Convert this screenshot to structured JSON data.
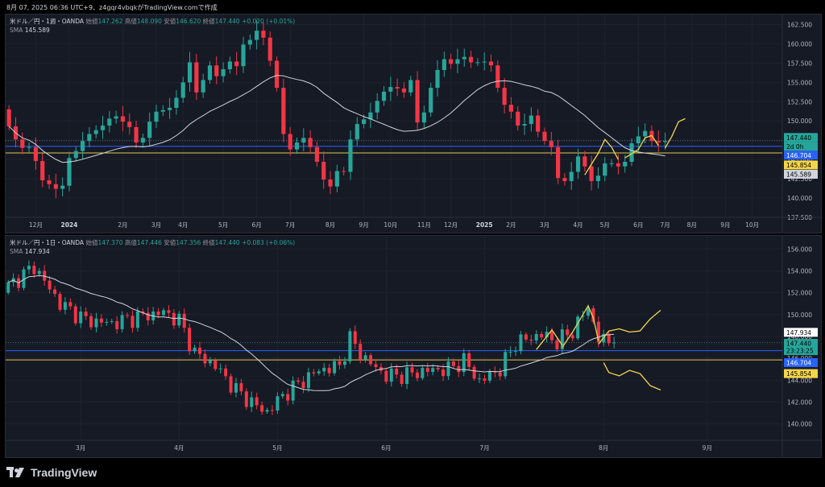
{
  "snapshot_caption": "8月 07, 2025 06:36 UTC+9、z4gqr4vbqkがTradingView.comで作成",
  "brand": "TradingView",
  "colors": {
    "up": "#26a69a",
    "down": "#f23645",
    "sma": "#d1d4dc",
    "trend": "#f5d547",
    "blue_line": "#2962ff",
    "white_line": "#b2b5be",
    "pane_bg": "#161a25",
    "grid": "#1f2330"
  },
  "chart_data": [
    {
      "type": "candlestick",
      "pane": "top",
      "title": "米ドル／円・1週・OANDA",
      "ohlc_legend": {
        "open_label": "始値",
        "open": "147.262",
        "high_label": "高値",
        "high": "148.090",
        "low_label": "安値",
        "low": "146.620",
        "close_label": "終値",
        "close": "147.440",
        "change": "+0.020 (+0.01%)"
      },
      "sma_label": "SMA",
      "sma_value": "145.589",
      "ylim": [
        137.5,
        163.8
      ],
      "y_ticks": [
        "162.500",
        "160.000",
        "157.500",
        "155.000",
        "152.500",
        "150.000",
        "147.500",
        "145.000",
        "142.500",
        "140.000",
        "137.500"
      ],
      "x_ticks": [
        {
          "label": "12月",
          "i": 4
        },
        {
          "label": "2024",
          "i": 9
        },
        {
          "label": "2月",
          "i": 17
        },
        {
          "label": "3月",
          "i": 22
        },
        {
          "label": "4月",
          "i": 26
        },
        {
          "label": "5月",
          "i": 32
        },
        {
          "label": "6月",
          "i": 37
        },
        {
          "label": "7月",
          "i": 42
        },
        {
          "label": "8月",
          "i": 48
        },
        {
          "label": "9月",
          "i": 53
        },
        {
          "label": "10月",
          "i": 57
        },
        {
          "label": "11月",
          "i": 62
        },
        {
          "label": "12月",
          "i": 66
        },
        {
          "label": "2025",
          "i": 71
        },
        {
          "label": "2月",
          "i": 75
        },
        {
          "label": "3月",
          "i": 80
        },
        {
          "label": "4月",
          "i": 85
        },
        {
          "label": "5月",
          "i": 89
        },
        {
          "label": "6月",
          "i": 94
        },
        {
          "label": "7月",
          "i": 98
        },
        {
          "label": "8月",
          "i": 102
        },
        {
          "label": "9月",
          "i": 107
        },
        {
          "label": "10月",
          "i": 111
        }
      ],
      "x_slots": 116,
      "closes": [
        149.3,
        147.6,
        146.5,
        146.6,
        144.8,
        142.3,
        141.8,
        141.2,
        141.6,
        145.2,
        146.1,
        147.4,
        148.3,
        148.8,
        149.4,
        150.3,
        150.6,
        149.9,
        149.2,
        147.2,
        147.8,
        149.9,
        151.2,
        151.4,
        151.7,
        153.0,
        155.0,
        157.6,
        153.7,
        155.3,
        157.2,
        155.8,
        156.7,
        157.7,
        157.1,
        159.9,
        160.5,
        161.7,
        160.8,
        157.8,
        154.3,
        148.3,
        146.3,
        147.2,
        147.8,
        146.6,
        144.7,
        142.4,
        141.5,
        143.5,
        143.4,
        147.6,
        149.6,
        150.2,
        151.1,
        152.6,
        153.8,
        154.4,
        154.2,
        153.7,
        155.3,
        149.8,
        151.1,
        154.3,
        156.6,
        158.0,
        157.4,
        158.0,
        158.3,
        157.6,
        157.6,
        157.7,
        157.2,
        154.3,
        152.1,
        151.2,
        149.4,
        149.6,
        150.7,
        148.6,
        147.4,
        146.6,
        142.6,
        142.2,
        143.4,
        145.4,
        144.1,
        142.2,
        142.9,
        144.5,
        144.5,
        144.1,
        144.7,
        147.1,
        148.0,
        148.7,
        147.4,
        147.2,
        147.4
      ],
      "opens": [
        151.5,
        149.3,
        147.6,
        146.5,
        146.6,
        144.8,
        142.3,
        141.8,
        141.2,
        141.6,
        145.2,
        146.1,
        147.4,
        148.3,
        148.8,
        149.4,
        150.3,
        150.6,
        149.9,
        149.2,
        147.2,
        147.8,
        149.9,
        151.2,
        151.4,
        151.7,
        153.0,
        155.0,
        157.6,
        153.7,
        155.3,
        157.2,
        155.8,
        156.7,
        157.7,
        157.1,
        159.9,
        160.5,
        161.7,
        160.8,
        157.8,
        154.3,
        148.3,
        146.3,
        147.2,
        147.8,
        146.6,
        144.7,
        142.4,
        141.5,
        143.5,
        143.4,
        147.6,
        149.6,
        150.2,
        151.1,
        152.6,
        153.8,
        154.4,
        154.2,
        153.7,
        155.3,
        149.8,
        151.1,
        154.3,
        156.6,
        158.0,
        157.4,
        158.0,
        158.3,
        157.6,
        157.6,
        157.7,
        157.2,
        154.3,
        152.1,
        151.2,
        149.4,
        149.6,
        150.7,
        148.6,
        147.4,
        146.6,
        142.6,
        142.2,
        143.4,
        145.4,
        144.1,
        142.2,
        142.9,
        144.5,
        144.5,
        144.1,
        144.7,
        147.1,
        148.0,
        148.7,
        147.4,
        147.262
      ],
      "price_labels": {
        "close": "147.440",
        "countdown": "2d 0h",
        "blue": "146.704",
        "yellow": "145.854",
        "sma": "145.589"
      },
      "levels": {
        "dotted": 147.44,
        "blue": 146.704,
        "yellow": 145.854
      }
    },
    {
      "type": "candlestick",
      "pane": "bottom",
      "title": "米ドル／円・1日・OANDA",
      "ohlc_legend": {
        "open_label": "始値",
        "open": "147.370",
        "high_label": "高値",
        "high": "147.446",
        "low_label": "安値",
        "low": "147.356",
        "close_label": "終値",
        "close": "147.440",
        "change": "+0.083 (+0.06%)"
      },
      "sma_label": "SMA",
      "sma_value": "147.934",
      "ylim": [
        138.5,
        157.2
      ],
      "y_ticks": [
        "156.000",
        "154.000",
        "152.000",
        "150.000",
        "148.000",
        "146.000",
        "144.000",
        "142.000",
        "140.000"
      ],
      "x_ticks": [
        {
          "label": "3月",
          "i": 14
        },
        {
          "label": "4月",
          "i": 33
        },
        {
          "label": "5月",
          "i": 52
        },
        {
          "label": "6月",
          "i": 73
        },
        {
          "label": "7月",
          "i": 92
        },
        {
          "label": "8月",
          "i": 115
        },
        {
          "label": "9月",
          "i": 135
        }
      ],
      "x_slots": 150,
      "price_labels": {
        "sma": "147.934",
        "close": "147.440",
        "countdown": "23:23:25",
        "blue": "146.704",
        "yellow": "145.854"
      },
      "levels": {
        "dotted": 147.44,
        "blue": 146.704,
        "yellow": 145.854
      }
    }
  ]
}
